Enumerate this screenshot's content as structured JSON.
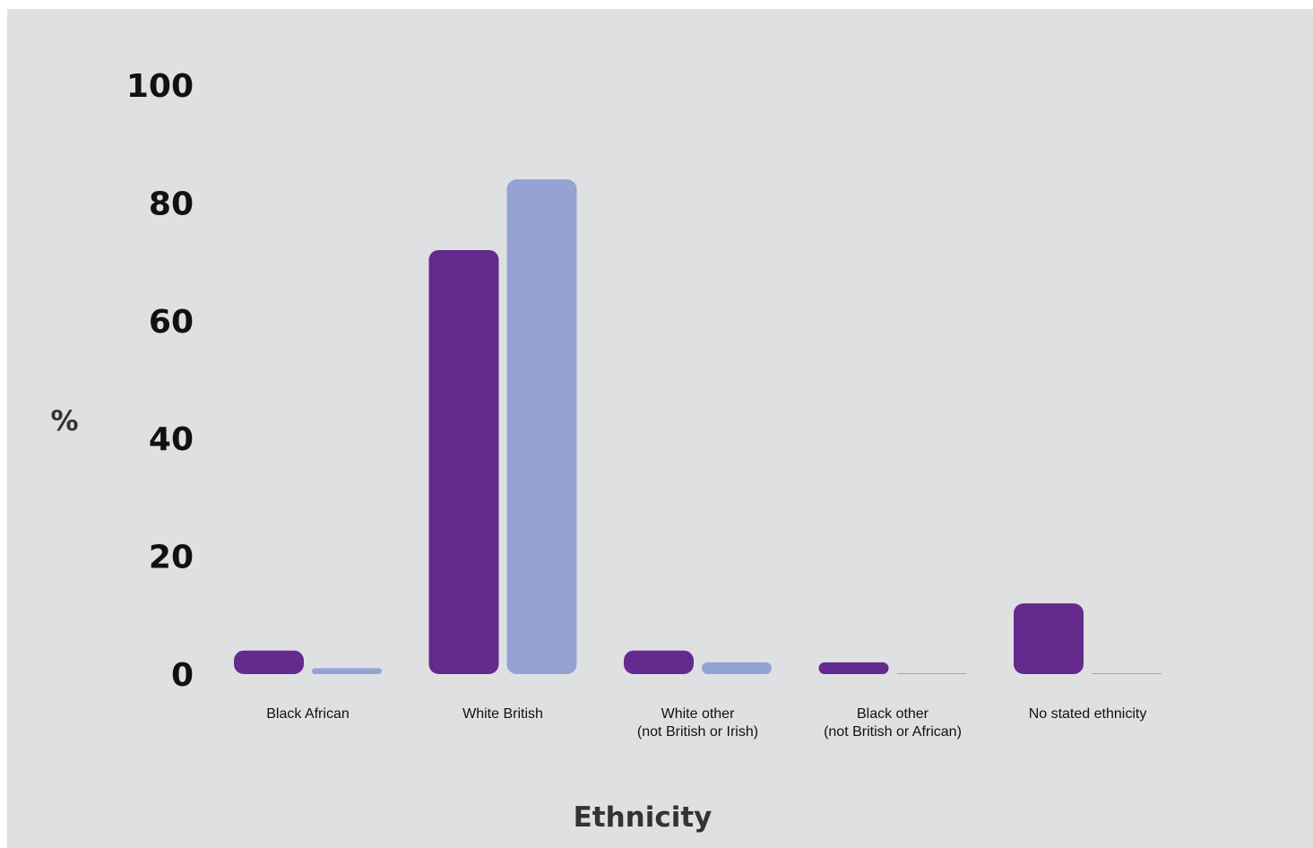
{
  "chart_data": {
    "type": "bar",
    "title": "",
    "xlabel": "Ethnicity",
    "ylabel": "%",
    "ylim": [
      0,
      100
    ],
    "yticks": [
      0,
      20,
      40,
      60,
      80,
      100
    ],
    "grid": false,
    "categories": [
      [
        "Black African"
      ],
      [
        "White British"
      ],
      [
        "White other",
        "(not British or Irish)"
      ],
      [
        "Black other",
        "(not British or African)"
      ],
      [
        "No stated ethnicity"
      ]
    ],
    "series": [
      {
        "color": "#652a8e",
        "values": [
          4,
          72,
          4,
          2,
          12
        ]
      },
      {
        "color": "#94a3d4",
        "values": [
          1,
          84,
          2,
          0,
          0
        ]
      }
    ]
  }
}
